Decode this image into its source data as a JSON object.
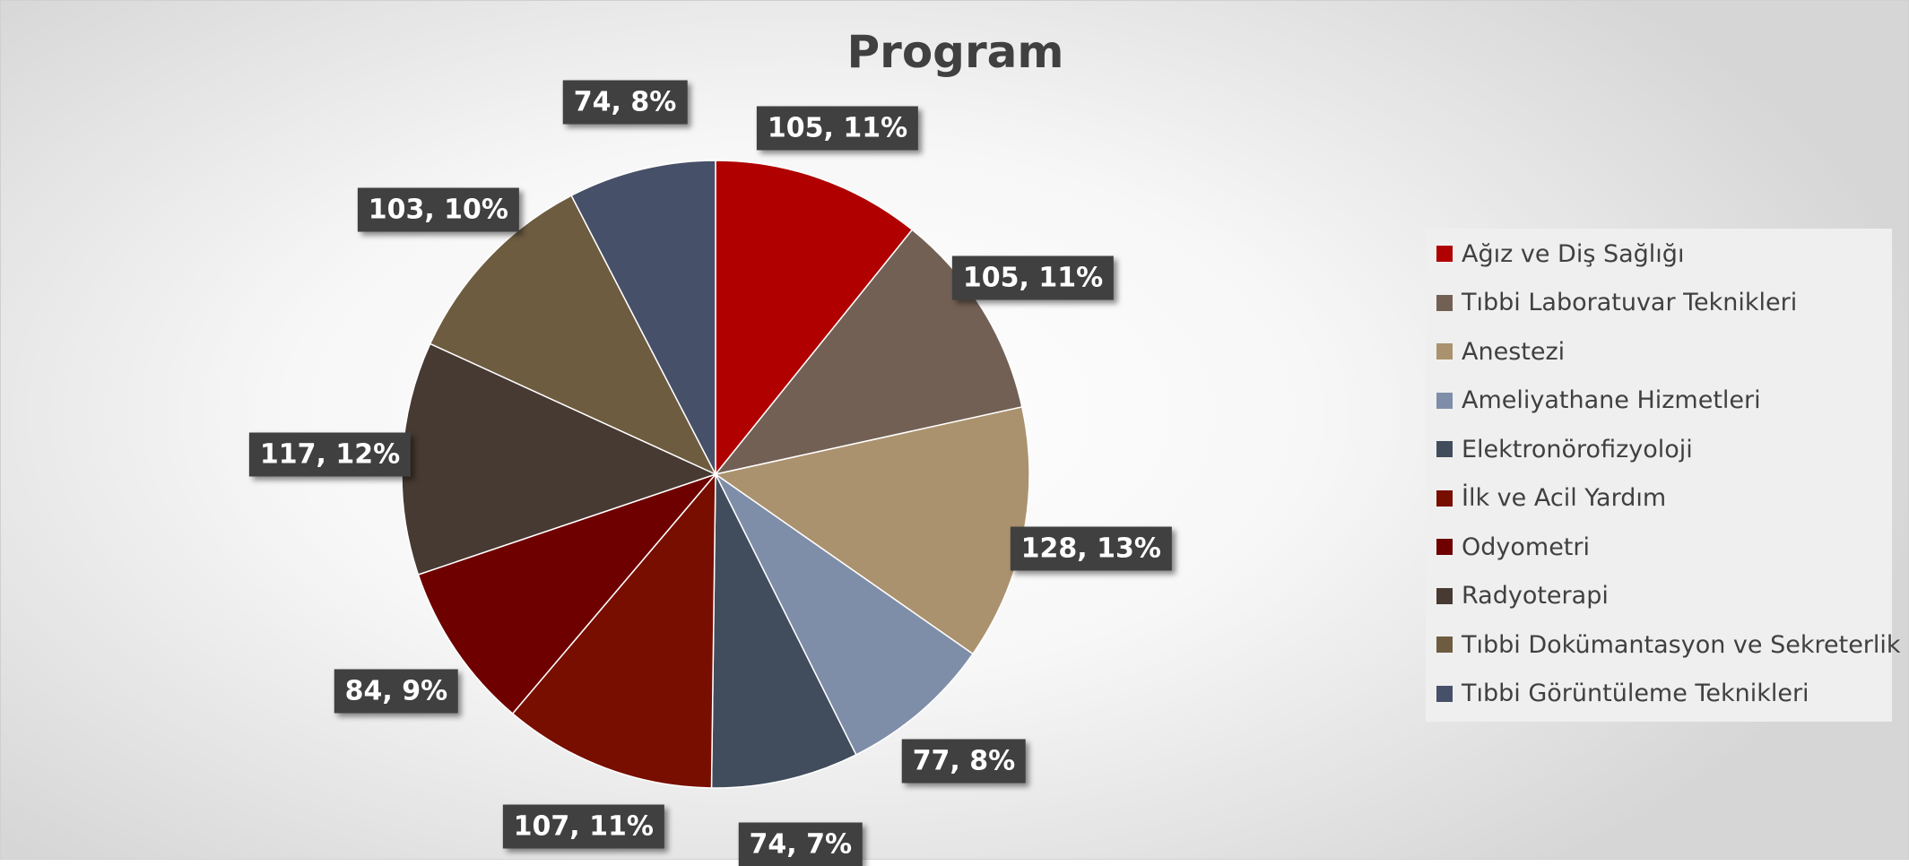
{
  "chart_data": {
    "type": "pie",
    "title": "Program",
    "categories": [
      "Ağız ve Diş Sağlığı",
      "Tıbbi Laboratuvar Teknikleri",
      "Anestezi",
      "Ameliyathane Hizmetleri",
      "Elektronörofizyoloji",
      "İlk ve Acil Yardım",
      "Odyometri",
      "Radyoterapi",
      "Tıbbi Dokümantasyon ve Sekreterlik",
      "Tıbbi Görüntüleme Teknikleri"
    ],
    "values": [
      105,
      105,
      128,
      77,
      74,
      107,
      84,
      117,
      103,
      74
    ],
    "data_labels": [
      "105, 11%",
      "105, 11%",
      "128, 13%",
      "77, 8%",
      "74, 7%",
      "107, 11%",
      "84, 9%",
      "117, 12%",
      "103, 10%",
      "74, 8%"
    ],
    "colors": [
      "#b00000",
      "#736054",
      "#ab926e",
      "#7f8ea8",
      "#414d5d",
      "#780e00",
      "#6e0000",
      "#473a32",
      "#6e5c40",
      "#475069"
    ],
    "legend_position": "right",
    "start_angle_deg": 0,
    "direction": "clockwise"
  }
}
